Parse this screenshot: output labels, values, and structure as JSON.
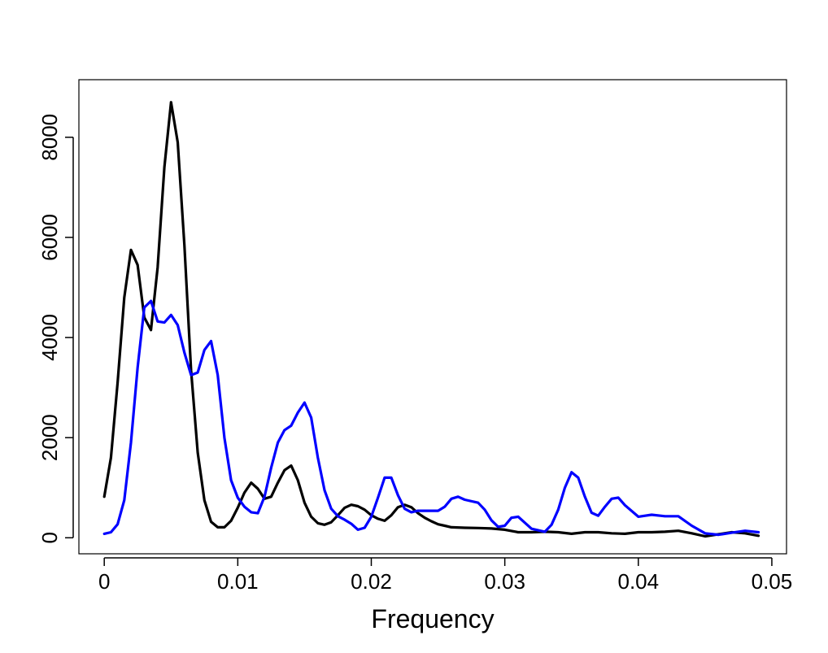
{
  "chart_data": {
    "type": "line",
    "title": "",
    "xlabel": "Frequency",
    "ylabel": "",
    "xlim": [
      -0.0019,
      0.0511
    ],
    "ylim": [
      -320,
      9150
    ],
    "grid": false,
    "x_ticks": [
      0,
      0.01,
      0.02,
      0.03,
      0.04,
      0.05
    ],
    "x_tick_labels": [
      "0",
      "0.01",
      "0.02",
      "0.03",
      "0.04",
      "0.05"
    ],
    "y_ticks": [
      0,
      2000,
      4000,
      6000,
      8000
    ],
    "y_tick_labels": [
      "0",
      "2000",
      "4000",
      "6000",
      "8000"
    ],
    "series": [
      {
        "color": "#000000",
        "points": [
          [
            0,
            820
          ],
          [
            0.0005,
            1600
          ],
          [
            0.001,
            3100
          ],
          [
            0.0015,
            4800
          ],
          [
            0.002,
            5750
          ],
          [
            0.0025,
            5450
          ],
          [
            0.003,
            4400
          ],
          [
            0.0035,
            4150
          ],
          [
            0.004,
            5400
          ],
          [
            0.0045,
            7400
          ],
          [
            0.005,
            8700
          ],
          [
            0.0055,
            7900
          ],
          [
            0.006,
            5850
          ],
          [
            0.0065,
            3350
          ],
          [
            0.007,
            1700
          ],
          [
            0.0075,
            750
          ],
          [
            0.008,
            320
          ],
          [
            0.0085,
            210
          ],
          [
            0.009,
            210
          ],
          [
            0.0095,
            340
          ],
          [
            0.01,
            600
          ],
          [
            0.0105,
            900
          ],
          [
            0.011,
            1100
          ],
          [
            0.0115,
            980
          ],
          [
            0.012,
            780
          ],
          [
            0.0125,
            820
          ],
          [
            0.013,
            1100
          ],
          [
            0.0135,
            1350
          ],
          [
            0.014,
            1440
          ],
          [
            0.0145,
            1150
          ],
          [
            0.015,
            700
          ],
          [
            0.0155,
            420
          ],
          [
            0.016,
            290
          ],
          [
            0.0165,
            260
          ],
          [
            0.017,
            310
          ],
          [
            0.0175,
            450
          ],
          [
            0.018,
            600
          ],
          [
            0.0185,
            660
          ],
          [
            0.019,
            630
          ],
          [
            0.0195,
            560
          ],
          [
            0.02,
            450
          ],
          [
            0.0205,
            380
          ],
          [
            0.021,
            340
          ],
          [
            0.0215,
            450
          ],
          [
            0.022,
            610
          ],
          [
            0.0225,
            660
          ],
          [
            0.023,
            610
          ],
          [
            0.0235,
            490
          ],
          [
            0.024,
            400
          ],
          [
            0.0245,
            330
          ],
          [
            0.025,
            270
          ],
          [
            0.0255,
            240
          ],
          [
            0.026,
            210
          ],
          [
            0.027,
            200
          ],
          [
            0.028,
            195
          ],
          [
            0.029,
            185
          ],
          [
            0.03,
            160
          ],
          [
            0.031,
            110
          ],
          [
            0.032,
            110
          ],
          [
            0.033,
            120
          ],
          [
            0.034,
            110
          ],
          [
            0.035,
            80
          ],
          [
            0.036,
            110
          ],
          [
            0.037,
            110
          ],
          [
            0.038,
            90
          ],
          [
            0.039,
            80
          ],
          [
            0.04,
            110
          ],
          [
            0.041,
            110
          ],
          [
            0.042,
            120
          ],
          [
            0.043,
            140
          ],
          [
            0.044,
            90
          ],
          [
            0.045,
            30
          ],
          [
            0.046,
            70
          ],
          [
            0.047,
            110
          ],
          [
            0.048,
            90
          ],
          [
            0.049,
            40
          ]
        ]
      },
      {
        "color": "#0000ff",
        "points": [
          [
            0,
            80
          ],
          [
            0.0005,
            110
          ],
          [
            0.001,
            270
          ],
          [
            0.0015,
            750
          ],
          [
            0.002,
            1900
          ],
          [
            0.0025,
            3400
          ],
          [
            0.003,
            4600
          ],
          [
            0.0035,
            4730
          ],
          [
            0.004,
            4320
          ],
          [
            0.0045,
            4300
          ],
          [
            0.005,
            4450
          ],
          [
            0.0055,
            4250
          ],
          [
            0.006,
            3700
          ],
          [
            0.0065,
            3250
          ],
          [
            0.007,
            3300
          ],
          [
            0.0075,
            3750
          ],
          [
            0.008,
            3930
          ],
          [
            0.0085,
            3250
          ],
          [
            0.009,
            2000
          ],
          [
            0.0095,
            1150
          ],
          [
            0.01,
            800
          ],
          [
            0.0105,
            620
          ],
          [
            0.011,
            510
          ],
          [
            0.0115,
            490
          ],
          [
            0.012,
            820
          ],
          [
            0.0125,
            1400
          ],
          [
            0.013,
            1900
          ],
          [
            0.0135,
            2150
          ],
          [
            0.014,
            2240
          ],
          [
            0.0145,
            2500
          ],
          [
            0.015,
            2700
          ],
          [
            0.0155,
            2400
          ],
          [
            0.016,
            1600
          ],
          [
            0.0165,
            950
          ],
          [
            0.017,
            580
          ],
          [
            0.0175,
            430
          ],
          [
            0.018,
            360
          ],
          [
            0.0185,
            280
          ],
          [
            0.019,
            160
          ],
          [
            0.0195,
            200
          ],
          [
            0.02,
            420
          ],
          [
            0.0205,
            800
          ],
          [
            0.021,
            1200
          ],
          [
            0.0215,
            1200
          ],
          [
            0.022,
            850
          ],
          [
            0.0225,
            580
          ],
          [
            0.023,
            510
          ],
          [
            0.0235,
            540
          ],
          [
            0.024,
            540
          ],
          [
            0.025,
            540
          ],
          [
            0.0255,
            620
          ],
          [
            0.026,
            780
          ],
          [
            0.0265,
            820
          ],
          [
            0.027,
            760
          ],
          [
            0.028,
            700
          ],
          [
            0.0285,
            560
          ],
          [
            0.029,
            350
          ],
          [
            0.0295,
            220
          ],
          [
            0.03,
            240
          ],
          [
            0.0305,
            400
          ],
          [
            0.031,
            420
          ],
          [
            0.0315,
            300
          ],
          [
            0.032,
            180
          ],
          [
            0.033,
            120
          ],
          [
            0.0335,
            260
          ],
          [
            0.034,
            560
          ],
          [
            0.0345,
            1000
          ],
          [
            0.035,
            1310
          ],
          [
            0.0355,
            1200
          ],
          [
            0.036,
            820
          ],
          [
            0.0365,
            500
          ],
          [
            0.037,
            440
          ],
          [
            0.0375,
            620
          ],
          [
            0.038,
            780
          ],
          [
            0.0385,
            800
          ],
          [
            0.039,
            650
          ],
          [
            0.04,
            420
          ],
          [
            0.041,
            460
          ],
          [
            0.042,
            430
          ],
          [
            0.043,
            430
          ],
          [
            0.044,
            240
          ],
          [
            0.045,
            90
          ],
          [
            0.046,
            60
          ],
          [
            0.047,
            100
          ],
          [
            0.048,
            140
          ],
          [
            0.049,
            110
          ]
        ]
      }
    ]
  }
}
